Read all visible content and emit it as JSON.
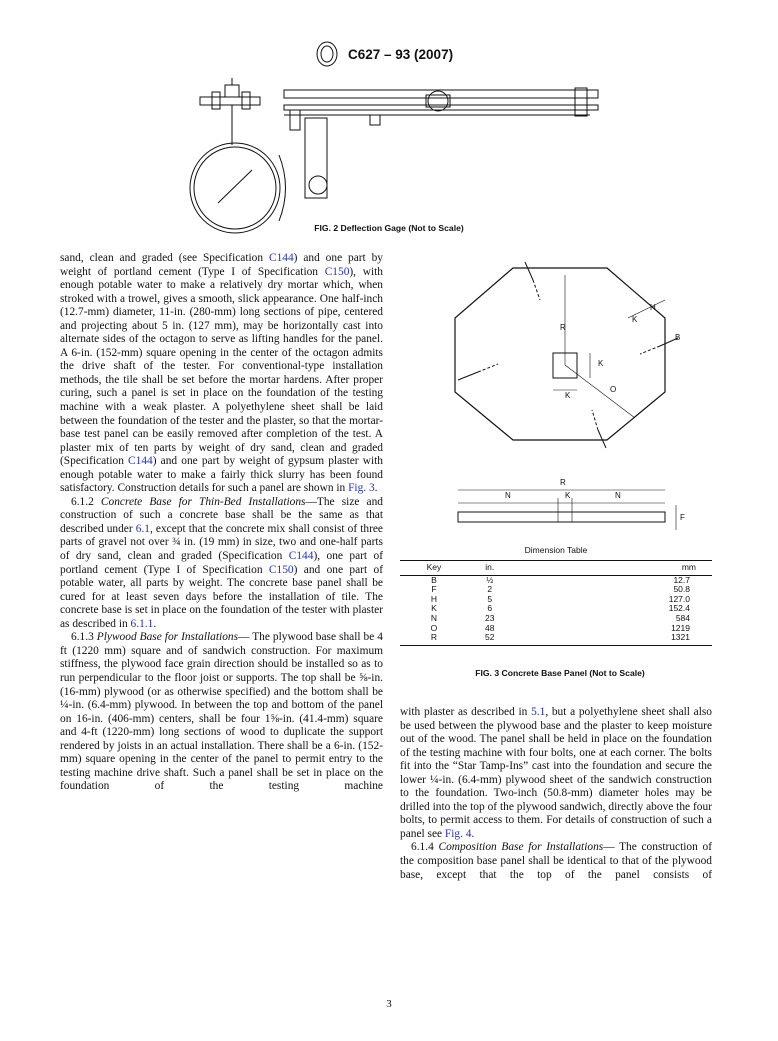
{
  "header": {
    "designation": "C627 – 93 (2007)"
  },
  "figure2": {
    "caption": "FIG. 2 Deflection Gage (Not to Scale)"
  },
  "figure3": {
    "labels": [
      "R",
      "K",
      "H",
      "B",
      "K",
      "K",
      "O",
      "R",
      "N",
      "K",
      "N",
      "F"
    ],
    "table": {
      "title": "Dimension Table",
      "columns": [
        "Key",
        "in.",
        "mm"
      ],
      "rows": [
        [
          "B",
          "½",
          "12.7"
        ],
        [
          "F",
          "2",
          "50.8"
        ],
        [
          "H",
          "5",
          "127.0"
        ],
        [
          "K",
          "6",
          "152.4"
        ],
        [
          "N",
          "23",
          "584"
        ],
        [
          "O",
          "48",
          "1219"
        ],
        [
          "R",
          "52",
          "1321"
        ]
      ]
    },
    "caption": "FIG. 3 Concrete Base Panel (Not to Scale)"
  },
  "left": [
    {
      "indent": false,
      "runs": [
        "sand, clean and graded (see Specification ",
        {
          "link": "C144"
        },
        ") and one part by weight of portland cement (Type I of Specification ",
        {
          "link": "C150"
        },
        "), with enough potable water to make a relatively dry mortar which, when stroked with a trowel, gives a smooth, slick appearance. One half-inch (12.7-mm) diameter, 11-in. (280-mm) long sections of pipe, centered and projecting about 5 in. (127 mm), may be horizontally cast into alternate sides of the octagon to serve as lifting handles for the panel. A 6-in. (152-mm) square opening in the center of the octagon admits the drive shaft of the tester. For conventional-type installation methods, the tile shall be set before the mortar hardens. After proper curing, such a panel is set in place on the foundation of the testing machine with a weak plaster. A polyethylene sheet shall be laid between the foundation of the tester and the plaster, so that the mortar-base test panel can be easily removed after completion of the test. A plaster mix of ten parts by weight of dry sand, clean and graded (Specification ",
        {
          "link": "C144"
        },
        ") and one part by weight of gypsum plaster with enough potable water to make a fairly thick slurry has been found satisfactory. Construction details for such a panel are shown in ",
        {
          "link": "Fig. 3"
        },
        "."
      ]
    },
    {
      "indent": true,
      "runs": [
        "6.1.2 ",
        {
          "italic": "Concrete Base for Thin-Bed Installations"
        },
        "—The size and construction of such a concrete base shall be the same as that described under ",
        {
          "link": "6.1"
        },
        ", except that the concrete mix shall consist of three parts of gravel not over ¾ in. (19 mm) in size, two and one-half parts of dry sand, clean and graded (Specification ",
        {
          "link": "C144"
        },
        "), one part of portland cement (Type I of Specification ",
        {
          "link": "C150"
        },
        ") and one part of potable water, all parts by weight. The concrete base panel shall be cured for at least seven days before the installation of tile. The concrete base is set in place on the foundation of the tester with plaster as described in ",
        {
          "link": "6.1.1"
        },
        "."
      ]
    },
    {
      "indent": true,
      "runs": [
        "6.1.3 ",
        {
          "italic": "Plywood Base for Installations"
        },
        "— The plywood base shall be 4 ft (1220 mm) square and of sandwich construction. For maximum stiffness, the plywood face grain direction should be installed so as to run perpendicular to the floor joist or supports. The top shall be ⅝-in. (16-mm) plywood (or as otherwise specified) and the bottom shall be ¼-in. (6.4-mm) plywood. In between the top and bottom of the panel on 16-in. (406-mm) centers, shall be four 1⅝-in. (41.4-mm) square and 4-ft (1220-mm) long sections of wood to duplicate the support rendered by joists in an actual installation. There shall be a 6-in. (152-mm) square opening in the center of the panel to permit entry to the testing machine drive shaft. Such a panel shall be set in place on the foundation of the testing machine"
      ]
    }
  ],
  "right": [
    {
      "indent": false,
      "runs": [
        "with plaster as described in ",
        {
          "link": "5.1"
        },
        ", but a polyethylene sheet shall also be used between the plywood base and the plaster to keep moisture out of the wood. The panel shall be held in place on the foundation of the testing machine with four bolts, one at each corner. The bolts fit into the “Star Tamp-Ins” cast into the foundation and secure the lower ¼-in. (6.4-mm) plywood sheet of the sandwich construction to the foundation. Two-inch (50.8-mm) diameter holes may be drilled into the top of the plywood sandwich, directly above the four bolts, to permit access to them. For details of construction of such a panel see ",
        {
          "link": "Fig. 4"
        },
        "."
      ]
    },
    {
      "indent": true,
      "runs": [
        "6.1.4 ",
        {
          "italic": "Composition Base for Installations"
        },
        "— The construction of the composition base panel shall be identical to that of the plywood base, except that the top of the panel consists of"
      ]
    }
  ],
  "footer": {
    "page": "3"
  }
}
